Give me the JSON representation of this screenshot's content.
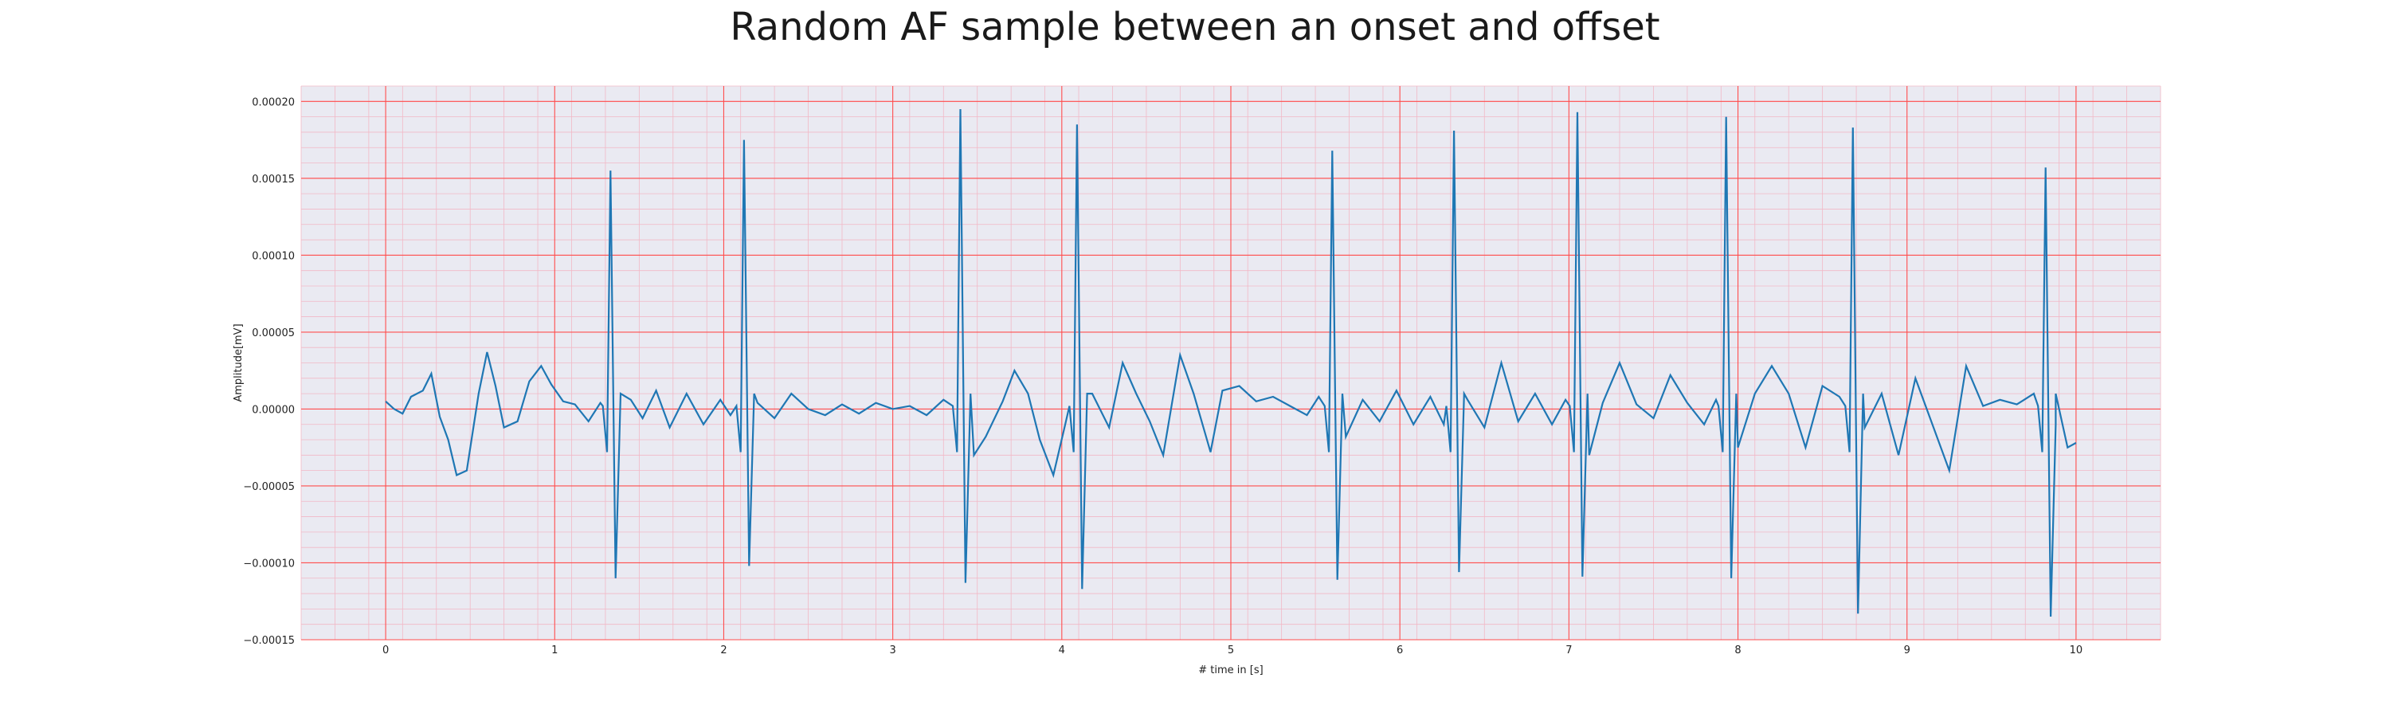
{
  "chart_data": {
    "type": "line",
    "title": "Random AF sample between an onset and offset",
    "xlabel": "# time in [s]",
    "ylabel": "Amplitude[mV]",
    "xlim": [
      -0.5,
      10.5
    ],
    "ylim": [
      -0.00015,
      0.00021
    ],
    "xticks": [
      0,
      1,
      2,
      3,
      4,
      5,
      6,
      7,
      8,
      9,
      10
    ],
    "xtick_labels": [
      "0",
      "1",
      "2",
      "3",
      "4",
      "5",
      "6",
      "7",
      "8",
      "9",
      "10"
    ],
    "yticks": [
      -0.00015,
      -0.0001,
      -5e-05,
      0,
      5e-05,
      0.0001,
      0.00015,
      0.0002
    ],
    "ytick_labels": [
      "−0.00015",
      "−0.00010",
      "−0.00005",
      "0.00000",
      "0.00005",
      "0.00010",
      "0.00015",
      "0.00020"
    ],
    "grid": true,
    "minor_grid": true,
    "background_color": "#eaeaf2",
    "major_grid_color": "#ff4d4d",
    "minor_grid_color": "#f2b8c6",
    "line_color": "#1f77b4",
    "series": [
      {
        "beats": [
          {
            "t": 1.33,
            "r": 0.000155,
            "s": -0.00011
          },
          {
            "t": 2.12,
            "r": 0.000175,
            "s": -0.000102
          },
          {
            "t": 3.4,
            "r": 0.000195,
            "s": -0.000113
          },
          {
            "t": 4.09,
            "r": 0.000185,
            "s": -0.000117
          },
          {
            "t": 5.6,
            "r": 0.000168,
            "s": -0.000111
          },
          {
            "t": 6.32,
            "r": 0.000181,
            "s": -0.000106
          },
          {
            "t": 7.05,
            "r": 0.000193,
            "s": -0.000109
          },
          {
            "t": 7.93,
            "r": 0.00019,
            "s": -0.00011
          },
          {
            "t": 8.68,
            "r": 0.000183,
            "s": -0.000133
          },
          {
            "t": 9.82,
            "r": 0.000157,
            "s": -0.000135
          }
        ],
        "baseline": [
          [
            0.0,
            5e-06
          ],
          [
            0.05,
            0.0
          ],
          [
            0.1,
            -3e-06
          ],
          [
            0.15,
            8e-06
          ],
          [
            0.22,
            1.2e-05
          ],
          [
            0.27,
            2.3e-05
          ],
          [
            0.32,
            -5e-06
          ],
          [
            0.37,
            -2e-05
          ],
          [
            0.42,
            -4.3e-05
          ],
          [
            0.48,
            -4e-05
          ],
          [
            0.55,
            1e-05
          ],
          [
            0.6,
            3.7e-05
          ],
          [
            0.65,
            1.5e-05
          ],
          [
            0.7,
            -1.2e-05
          ],
          [
            0.78,
            -8e-06
          ],
          [
            0.85,
            1.8e-05
          ],
          [
            0.92,
            2.8e-05
          ],
          [
            0.98,
            1.6e-05
          ],
          [
            1.05,
            5e-06
          ],
          [
            1.12,
            3e-06
          ],
          [
            1.2,
            -8e-06
          ],
          [
            1.27,
            4e-06
          ],
          [
            1.45,
            6e-06
          ],
          [
            1.52,
            -6e-06
          ],
          [
            1.6,
            1.2e-05
          ],
          [
            1.68,
            -1.2e-05
          ],
          [
            1.78,
            1e-05
          ],
          [
            1.88,
            -1e-05
          ],
          [
            1.98,
            6e-06
          ],
          [
            2.04,
            -4e-06
          ],
          [
            2.2,
            4e-06
          ],
          [
            2.3,
            -6e-06
          ],
          [
            2.4,
            1e-05
          ],
          [
            2.5,
            0.0
          ],
          [
            2.6,
            -4e-06
          ],
          [
            2.7,
            3e-06
          ],
          [
            2.8,
            -3e-06
          ],
          [
            2.9,
            4e-06
          ],
          [
            3.0,
            0.0
          ],
          [
            3.1,
            2e-06
          ],
          [
            3.2,
            -4e-06
          ],
          [
            3.3,
            6e-06
          ],
          [
            3.48,
            -3e-05
          ],
          [
            3.55,
            -1.8e-05
          ],
          [
            3.65,
            5e-06
          ],
          [
            3.72,
            2.5e-05
          ],
          [
            3.8,
            1e-05
          ],
          [
            3.87,
            -2e-05
          ],
          [
            3.95,
            -4.3e-05
          ],
          [
            4.02,
            -1e-05
          ],
          [
            4.18,
            1e-05
          ],
          [
            4.28,
            -1.2e-05
          ],
          [
            4.36,
            3e-05
          ],
          [
            4.44,
            1e-05
          ],
          [
            4.52,
            -8e-06
          ],
          [
            4.6,
            -3e-05
          ],
          [
            4.7,
            3.5e-05
          ],
          [
            4.78,
            1e-05
          ],
          [
            4.88,
            -2.8e-05
          ],
          [
            4.95,
            1.2e-05
          ],
          [
            5.05,
            1.5e-05
          ],
          [
            5.15,
            5e-06
          ],
          [
            5.25,
            8e-06
          ],
          [
            5.35,
            2e-06
          ],
          [
            5.45,
            -4e-06
          ],
          [
            5.52,
            8e-06
          ],
          [
            5.68,
            -1.8e-05
          ],
          [
            5.78,
            6e-06
          ],
          [
            5.88,
            -8e-06
          ],
          [
            5.98,
            1.2e-05
          ],
          [
            6.08,
            -1e-05
          ],
          [
            6.18,
            8e-06
          ],
          [
            6.26,
            -1e-05
          ],
          [
            6.4,
            6e-06
          ],
          [
            6.5,
            -1.2e-05
          ],
          [
            6.6,
            3e-05
          ],
          [
            6.7,
            -8e-06
          ],
          [
            6.8,
            1e-05
          ],
          [
            6.9,
            -1e-05
          ],
          [
            6.98,
            6e-06
          ],
          [
            7.12,
            -3e-05
          ],
          [
            7.2,
            4e-06
          ],
          [
            7.3,
            3e-05
          ],
          [
            7.4,
            3e-06
          ],
          [
            7.5,
            -6e-06
          ],
          [
            7.6,
            2.2e-05
          ],
          [
            7.7,
            4e-06
          ],
          [
            7.8,
            -1e-05
          ],
          [
            7.87,
            6e-06
          ],
          [
            8.0,
            -2.5e-05
          ],
          [
            8.1,
            1e-05
          ],
          [
            8.2,
            2.8e-05
          ],
          [
            8.3,
            1e-05
          ],
          [
            8.4,
            -2.5e-05
          ],
          [
            8.5,
            1.5e-05
          ],
          [
            8.6,
            8e-06
          ],
          [
            8.75,
            -1.2e-05
          ],
          [
            8.85,
            1e-05
          ],
          [
            8.95,
            -3e-05
          ],
          [
            9.05,
            2e-05
          ],
          [
            9.15,
            -1e-05
          ],
          [
            9.25,
            -4e-05
          ],
          [
            9.35,
            2.8e-05
          ],
          [
            9.45,
            2e-06
          ],
          [
            9.55,
            6e-06
          ],
          [
            9.65,
            3e-06
          ],
          [
            9.75,
            1e-05
          ],
          [
            9.88,
            -1e-05
          ],
          [
            9.95,
            -2.5e-05
          ],
          [
            10.0,
            -2.2e-05
          ]
        ]
      }
    ]
  }
}
